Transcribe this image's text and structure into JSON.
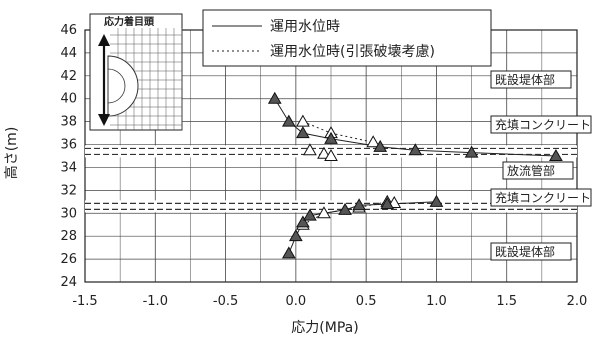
{
  "chart_data": {
    "type": "scatter",
    "xlabel": "応力(MPa)",
    "ylabel": "高さ(m)",
    "xlim": [
      -1.5,
      2.0
    ],
    "ylim": [
      24,
      46
    ],
    "xticks": [
      -1.5,
      -1.0,
      -0.5,
      0.0,
      0.5,
      1.0,
      1.5,
      2.0
    ],
    "xtick_labels": [
      "-1.5",
      "-1.0",
      "-0.5",
      "0.0",
      "0.5",
      "1.0",
      "1.5",
      "2.0"
    ],
    "yticks": [
      24,
      26,
      28,
      30,
      32,
      34,
      36,
      38,
      40,
      42,
      44,
      46
    ],
    "ytick_labels": [
      "24",
      "26",
      "28",
      "30",
      "32",
      "34",
      "36",
      "38",
      "40",
      "42",
      "44",
      "46"
    ],
    "grid": true,
    "legend": "top-center",
    "series": [
      {
        "name": "運用水位時",
        "marker": "filled-triangle",
        "line": "solid",
        "points": [
          [
            -0.05,
            26.5
          ],
          [
            0.0,
            28.0
          ],
          [
            0.05,
            29.2
          ],
          [
            0.1,
            29.8
          ],
          [
            0.35,
            30.3
          ],
          [
            0.45,
            30.7
          ],
          [
            0.65,
            30.8
          ],
          [
            1.0,
            31.0
          ],
          [
            -0.15,
            40.0
          ],
          [
            -0.05,
            38.0
          ],
          [
            0.05,
            37.0
          ],
          [
            0.25,
            36.5
          ],
          [
            0.6,
            35.8
          ],
          [
            0.85,
            35.5
          ],
          [
            1.25,
            35.3
          ],
          [
            1.85,
            35.0
          ]
        ]
      },
      {
        "name": "運用水位時(引張破壊考慮)",
        "marker": "open-triangle",
        "line": "dotted",
        "points": [
          [
            0.05,
            29.0
          ],
          [
            0.2,
            30.0
          ],
          [
            0.45,
            30.5
          ],
          [
            0.65,
            31.0
          ],
          [
            0.7,
            30.9
          ],
          [
            0.05,
            38.0
          ],
          [
            0.25,
            37.0
          ],
          [
            0.55,
            36.2
          ],
          [
            0.1,
            35.5
          ],
          [
            0.2,
            35.2
          ],
          [
            0.25,
            35.0
          ]
        ]
      }
    ],
    "zone_labels": [
      "既設堤体部",
      "充填コンクリート",
      "放流管部",
      "充填コンクリート",
      "既設堤体部"
    ],
    "inset_title": "応力着目頭"
  },
  "colors": {
    "series_stroke": "#222222",
    "grid": "#444444",
    "filled_marker": "#555555"
  }
}
